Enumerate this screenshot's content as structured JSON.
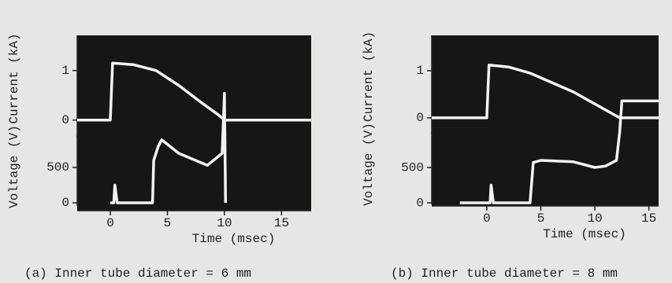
{
  "chart_data": [
    {
      "type": "line",
      "caption": "(a) Inner tube diameter = 6 mm",
      "xlabel": "Time (msec)",
      "ylabel": "Current (kA)",
      "y2label": "Voltage (V)",
      "xlim": [
        -2.9,
        17.6
      ],
      "xticks": [
        0,
        5,
        10,
        15
      ],
      "ylim": [
        -1.83,
        1.71
      ],
      "yticks": [
        0,
        1
      ],
      "y2lim": [
        -111,
        2367
      ],
      "y2ticks": [
        0,
        500
      ],
      "color": "#f2f2f2",
      "series": [
        {
          "axis": "y",
          "x": [
            -2.9,
            0,
            0.2,
            2,
            4,
            6,
            8,
            9.5,
            10,
            17.6
          ],
          "values": [
            0,
            0,
            1.15,
            1.12,
            1.0,
            0.7,
            0.35,
            0.1,
            0,
            0
          ]
        },
        {
          "axis": "y2",
          "x": [
            0,
            0.3,
            0.4,
            0.6,
            3.7,
            3.8,
            4.2,
            4.5,
            6,
            8.5,
            9.8,
            10,
            10.1
          ],
          "values": [
            0,
            0,
            250,
            0,
            0,
            600,
            800,
            890,
            700,
            530,
            700,
            1550,
            0
          ]
        }
      ]
    },
    {
      "type": "line",
      "caption": "(b) Inner tube diameter = 8 mm",
      "xlabel": "Time (msec)",
      "ylabel": "Current (kA)",
      "y2label": "Voltage (V)",
      "xlim": [
        -5.1,
        15.9
      ],
      "xticks": [
        0,
        5,
        10,
        15
      ],
      "ylim": [
        -1.87,
        1.75
      ],
      "yticks": [
        0,
        1
      ],
      "y2lim": [
        -44,
        2367
      ],
      "y2ticks": [
        0,
        500
      ],
      "color": "#f2f2f2",
      "series": [
        {
          "axis": "y",
          "x": [
            -5.1,
            0,
            0.2,
            2,
            4,
            8,
            12.3,
            15.9
          ],
          "values": [
            0,
            0,
            1.12,
            1.08,
            0.95,
            0.55,
            0,
            0
          ]
        },
        {
          "axis": "y2",
          "x": [
            -2.5,
            0.3,
            0.4,
            0.6,
            4,
            4.3,
            5,
            8,
            10,
            11,
            12,
            12.3,
            12.5,
            15.9
          ],
          "values": [
            0,
            0,
            250,
            0,
            0,
            570,
            600,
            580,
            500,
            520,
            600,
            1000,
            1440,
            1440
          ]
        }
      ]
    }
  ]
}
